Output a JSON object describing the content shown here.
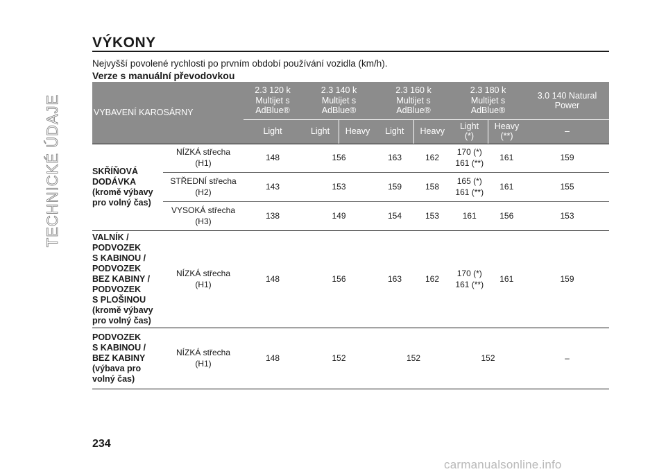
{
  "side_label": "TECHNICKÉ ÚDAJE",
  "title": "VÝKONY",
  "subtitle": "Nejvyšší povolené rychlosti po prvním období používání vozidla (km/h).",
  "section": "Verze s manuální převodovkou",
  "table": {
    "col0_header": "VYBAVENÍ KAROSÁRNY",
    "engines": [
      {
        "l1": "2.3 120 k",
        "l2": "Multijet s",
        "l3": "AdBlue®"
      },
      {
        "l1": "2.3 140 k",
        "l2": "Multijet s",
        "l3": "AdBlue®"
      },
      {
        "l1": "2.3 160 k",
        "l2": "Multijet s",
        "l3": "AdBlue®"
      },
      {
        "l1": "2.3 180 k",
        "l2": "Multijet s",
        "l3": "AdBlue®"
      },
      {
        "l1": "3.0 140 Natural",
        "l2": "Power"
      }
    ],
    "sub": {
      "e1": "Light",
      "e2": [
        "Light",
        "Heavy"
      ],
      "e3": [
        "Light",
        "Heavy"
      ],
      "e4": [
        [
          "Light",
          "(*)"
        ],
        [
          "Heavy",
          "(**)"
        ]
      ],
      "e5": "–"
    },
    "groups": [
      {
        "label": [
          "SKŘÍŇOVÁ",
          "DODÁVKA",
          "(kromě výbavy",
          "pro volný čas)"
        ],
        "rows": [
          {
            "roof": [
              "NÍZKÁ střecha",
              "(H1)"
            ],
            "e1": "148",
            "e2": [
              "156"
            ],
            "e3": [
              "163",
              "162"
            ],
            "e4a": [
              "170 (*)",
              "161 (**)"
            ],
            "e4b": "161",
            "e5": "159"
          },
          {
            "roof": [
              "STŘEDNÍ střecha",
              "(H2)"
            ],
            "e1": "143",
            "e2": [
              "153"
            ],
            "e3": [
              "159",
              "158"
            ],
            "e4a": [
              "165 (*)",
              "161 (**)"
            ],
            "e4b": "161",
            "e5": "155"
          },
          {
            "roof": [
              "VYSOKÁ střecha",
              "(H3)"
            ],
            "e1": "138",
            "e2": [
              "149"
            ],
            "e3": [
              "154",
              "153"
            ],
            "e4a": [
              "161"
            ],
            "e4b": "156",
            "e5": "153"
          }
        ]
      },
      {
        "label": [
          "VALNÍK /",
          "PODVOZEK",
          "S KABINOU /",
          "PODVOZEK",
          "BEZ KABINY /",
          "PODVOZEK",
          "S PLOŠINOU",
          "(kromě výbavy",
          "pro volný čas)"
        ],
        "rows": [
          {
            "roof": [
              "NÍZKÁ střecha",
              "(H1)"
            ],
            "e1": "148",
            "e2": [
              "156"
            ],
            "e3": [
              "163",
              "162"
            ],
            "e4a": [
              "170 (*)",
              "161 (**)"
            ],
            "e4b": "161",
            "e5": "159"
          }
        ]
      },
      {
        "label": [
          "PODVOZEK",
          "S KABINOU /",
          "BEZ KABINY",
          "(výbava pro",
          "volný čas)"
        ],
        "rows": [
          {
            "roof": [
              "NÍZKÁ střecha",
              "(H1)"
            ],
            "e1": "148",
            "e2": [
              "152"
            ],
            "e3": [
              "152"
            ],
            "e4": "152",
            "e5": "–"
          }
        ]
      }
    ]
  },
  "page_number": "234",
  "watermark": "carmanualsonline.info"
}
